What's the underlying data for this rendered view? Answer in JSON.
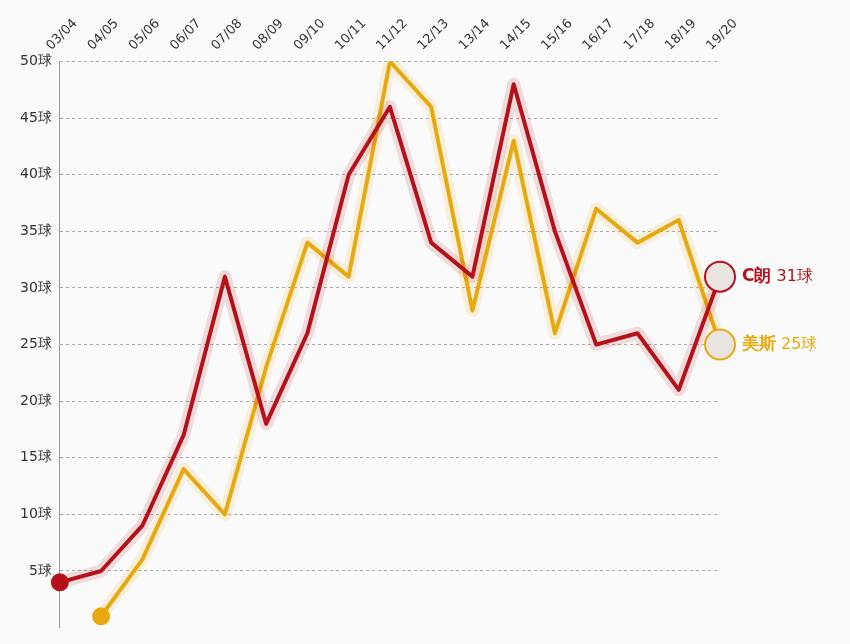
{
  "chart_data": {
    "type": "line",
    "categories": [
      "03/04",
      "04/05",
      "05/06",
      "06/07",
      "07/08",
      "08/09",
      "09/10",
      "10/11",
      "11/12",
      "12/13",
      "13/14",
      "14/15",
      "15/16",
      "16/17",
      "17/18",
      "18/19",
      "19/20"
    ],
    "series": [
      {
        "name": "C朗",
        "color": "#b5121b",
        "values": [
          4,
          5,
          9,
          17,
          31,
          18,
          26,
          40,
          46,
          34,
          31,
          48,
          35,
          25,
          26,
          21,
          31
        ],
        "value_labels": [
          null,
          null,
          null,
          null,
          null,
          null,
          null,
          null,
          null,
          null,
          null,
          null,
          null,
          null,
          null,
          null,
          "31球"
        ]
      },
      {
        "name": "美斯",
        "color": "#e8a90f",
        "values": [
          null,
          1,
          6,
          14,
          10,
          23,
          34,
          31,
          50,
          46,
          28,
          43,
          26,
          37,
          34,
          36,
          25
        ],
        "value_labels": [
          null,
          null,
          null,
          null,
          null,
          null,
          null,
          null,
          null,
          null,
          null,
          null,
          null,
          null,
          null,
          null,
          "25球"
        ]
      }
    ],
    "ylim": [
      0,
      50
    ],
    "yticks": [
      {
        "value": 5,
        "label": "5球"
      },
      {
        "value": 10,
        "label": "10球"
      },
      {
        "value": 15,
        "label": "15球"
      },
      {
        "value": 20,
        "label": "20球"
      },
      {
        "value": 25,
        "label": "25球"
      },
      {
        "value": 30,
        "label": "30球"
      },
      {
        "value": 35,
        "label": "35球"
      },
      {
        "value": 40,
        "label": "40球"
      },
      {
        "value": 45,
        "label": "45球"
      },
      {
        "value": 50,
        "label": "50球"
      }
    ],
    "grid": true,
    "legend": false
  }
}
